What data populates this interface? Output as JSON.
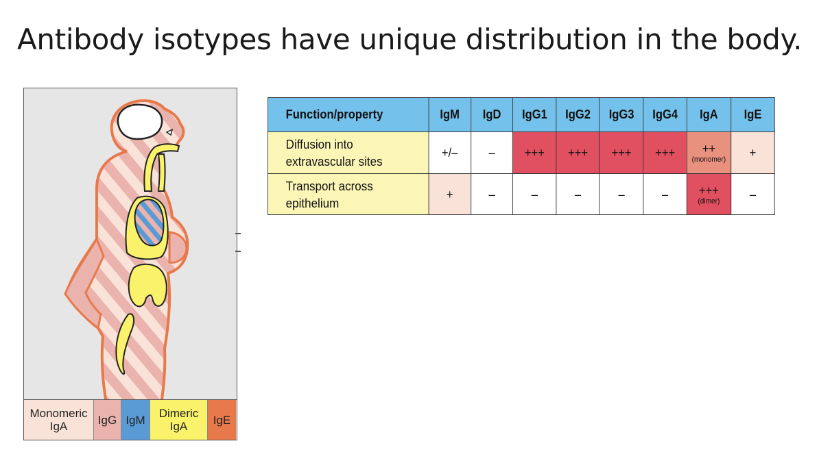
{
  "slide": {
    "title": "Antibody isotypes have unique distribution in the body."
  },
  "figure": {
    "legend": [
      {
        "label": "Monomeric IgA",
        "color": "#f9e2d8"
      },
      {
        "label": "IgG",
        "color": "#eab3ad"
      },
      {
        "label": "IgM",
        "color": "#5b9bd5"
      },
      {
        "label": "Dimeric IgA",
        "color": "#faf26a"
      },
      {
        "label": "IgE",
        "color": "#e8794a"
      }
    ]
  },
  "table": {
    "header": [
      "Function/property",
      "IgM",
      "IgD",
      "IgG1",
      "IgG2",
      "IgG3",
      "IgG4",
      "IgA",
      "IgE"
    ],
    "rows": [
      {
        "label_line1": "Diffusion into",
        "label_line2": "extravascular sites",
        "cells": [
          {
            "value": "+/–",
            "level": "none"
          },
          {
            "value": "–",
            "level": "none"
          },
          {
            "value": "+++",
            "level": "high"
          },
          {
            "value": "+++",
            "level": "high"
          },
          {
            "value": "+++",
            "level": "high"
          },
          {
            "value": "+++",
            "level": "high"
          },
          {
            "value": "++",
            "note": "(monomer)",
            "level": "medium"
          },
          {
            "value": "+",
            "level": "low"
          }
        ]
      },
      {
        "label_line1": "Transport across epithelium",
        "label_line2": "",
        "cells": [
          {
            "value": "+",
            "level": "low"
          },
          {
            "value": "–",
            "level": "none"
          },
          {
            "value": "–",
            "level": "none"
          },
          {
            "value": "–",
            "level": "none"
          },
          {
            "value": "–",
            "level": "none"
          },
          {
            "value": "–",
            "level": "none"
          },
          {
            "value": "+++",
            "note": "(dimer)",
            "level": "high"
          },
          {
            "value": "–",
            "level": "none"
          }
        ]
      }
    ],
    "level_colors": {
      "high": "#e05061",
      "medium": "#e8917f",
      "low": "#f9e2d8",
      "none": "#ffffff"
    }
  }
}
